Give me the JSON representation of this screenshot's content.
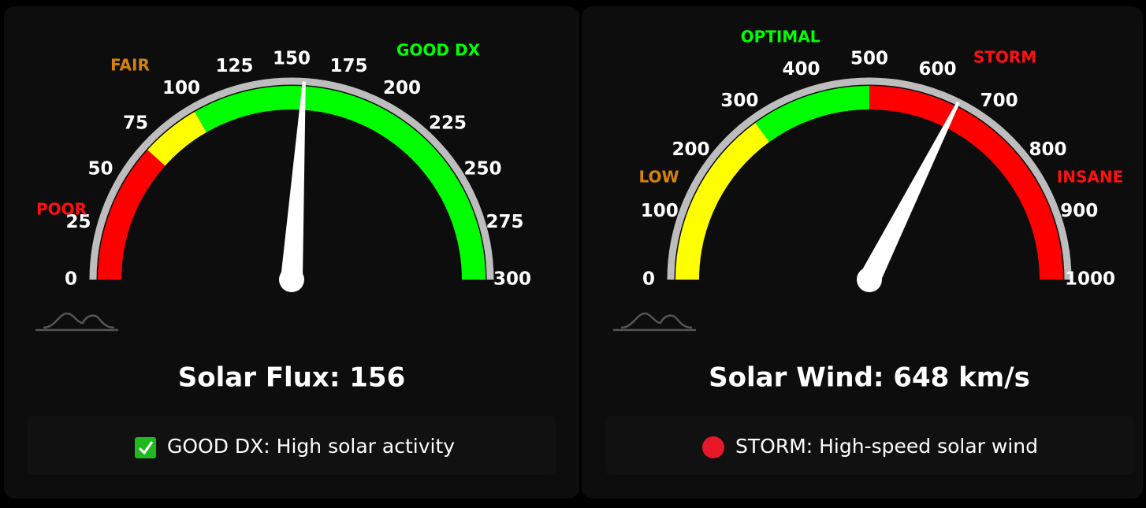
{
  "chart_data": [
    {
      "type": "gauge",
      "title": "Solar Flux: 156",
      "value": 156,
      "ylim": [
        0,
        300
      ],
      "yticks": [
        0,
        25,
        50,
        75,
        100,
        125,
        150,
        175,
        200,
        225,
        250,
        275,
        300
      ],
      "bands": [
        {
          "from": 0,
          "to": 70,
          "color": "#ff0000"
        },
        {
          "from": 70,
          "to": 100,
          "color": "#ffff00"
        },
        {
          "from": 100,
          "to": 300,
          "color": "#00ff00"
        }
      ],
      "zones": [
        {
          "label": "POOR",
          "color": "#ff1010"
        },
        {
          "label": "FAIR",
          "color": "#d4820a"
        },
        {
          "label": "GOOD DX",
          "color": "#00ff00"
        }
      ],
      "status": "GOOD DX: High solar activity"
    },
    {
      "type": "gauge",
      "title": "Solar Wind: 648 km/s",
      "value": 648,
      "ylim": [
        0,
        1000
      ],
      "yticks": [
        0,
        100,
        200,
        300,
        400,
        500,
        600,
        700,
        800,
        900,
        1000
      ],
      "bands": [
        {
          "from": 0,
          "to": 300,
          "color": "#ffff00"
        },
        {
          "from": 300,
          "to": 500,
          "color": "#00ff00"
        },
        {
          "from": 500,
          "to": 1000,
          "color": "#ff0000"
        }
      ],
      "zones": [
        {
          "label": "LOW",
          "color": "#d4820a"
        },
        {
          "label": "OPTIMAL",
          "color": "#00ff00"
        },
        {
          "label": "STORM",
          "color": "#ff1010"
        },
        {
          "label": "INSANE",
          "color": "#ff1010"
        }
      ],
      "status": "STORM: High-speed solar wind"
    }
  ]
}
